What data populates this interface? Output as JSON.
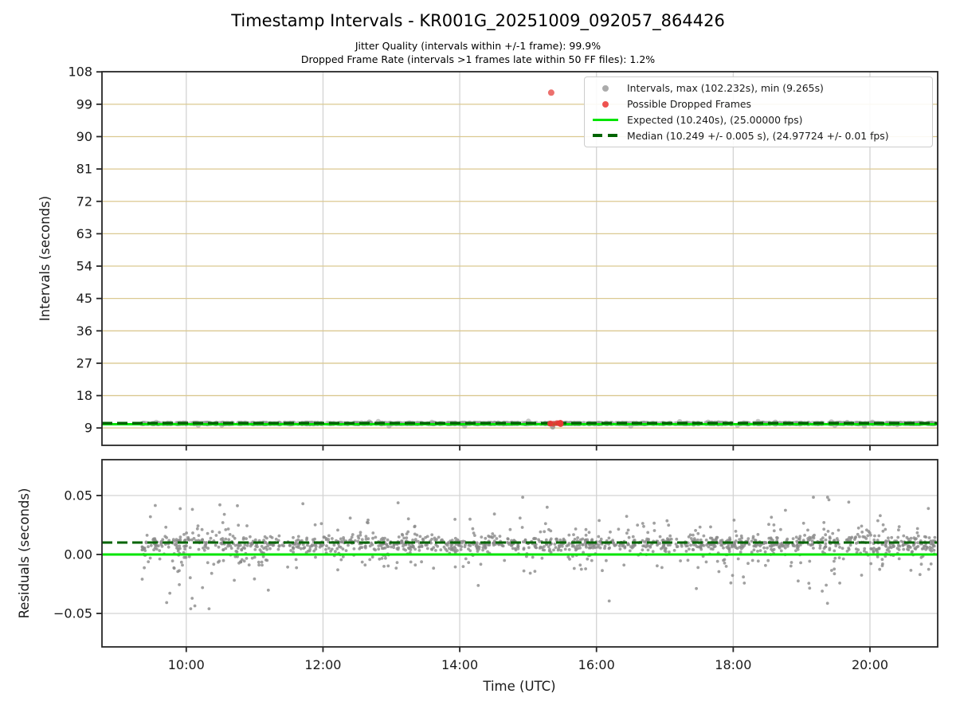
{
  "stats": {
    "jitter_quality_pct": 99.9,
    "dropped_frame_rate_pct": 1.2,
    "ff_files": 50
  },
  "chart_data": {
    "type": "scatter",
    "title": "Timestamp Intervals - KR001G_20251009_092057_864426",
    "subtitles": [
      "Jitter Quality (intervals within +/-1 frame): 99.9%",
      "Dropped Frame Rate (intervals >1 frames late within 50 FF files): 1.2%"
    ],
    "xlabel": "Time (UTC)",
    "x_ticks": [
      {
        "label": "10:00",
        "hour": 10
      },
      {
        "label": "12:00",
        "hour": 12
      },
      {
        "label": "14:00",
        "hour": 14
      },
      {
        "label": "16:00",
        "hour": 16
      },
      {
        "label": "18:00",
        "hour": 18
      },
      {
        "label": "20:00",
        "hour": 20
      }
    ],
    "xlim_hours": [
      8.77,
      20.99
    ],
    "panels": {
      "intervals": {
        "ylabel": "Intervals (seconds)",
        "y_ticks": [
          {
            "label": "9",
            "value": 9
          },
          {
            "label": "18",
            "value": 18
          },
          {
            "label": "27",
            "value": 27
          },
          {
            "label": "36",
            "value": 36
          },
          {
            "label": "45",
            "value": 45
          },
          {
            "label": "54",
            "value": 54
          },
          {
            "label": "63",
            "value": 63
          },
          {
            "label": "72",
            "value": 72
          },
          {
            "label": "81",
            "value": 81
          },
          {
            "label": "90",
            "value": 90
          },
          {
            "label": "99",
            "value": 99
          },
          {
            "label": "108",
            "value": 108
          }
        ],
        "ylim": [
          4.1,
          108
        ],
        "expected_seconds": 10.24,
        "expected_fps": "25.00000",
        "median_seconds": 10.249,
        "median_fps": "24.97724",
        "max_interval_s": 102.232,
        "min_interval_s": 9.265,
        "data_start_hour": 9.349,
        "data_end_hour": 20.95,
        "band_center_s": 10.245,
        "band_jitter_s": 0.05,
        "band_points": 720,
        "max_outlier": {
          "hour": 15.338,
          "value_s": 102.232
        },
        "min_point": {
          "hour": 15.36,
          "value_s": 9.265
        },
        "dropped_cluster": {
          "hour_start": 15.31,
          "hour_end": 15.5,
          "center_s": 10.33,
          "spread_s": 0.12,
          "count": 10
        }
      },
      "residuals": {
        "ylabel": "Residuals (seconds)",
        "y_ticks": [
          {
            "label": "0.05",
            "value": 0.05
          },
          {
            "label": "0.00",
            "value": 0.0
          },
          {
            "label": "−0.05",
            "value": -0.05
          }
        ],
        "ylim": [
          -0.078,
          0.08
        ],
        "zero_line_s": 0.0,
        "median_line_s": 0.0101,
        "n_points": 1500,
        "scatter_profile": {
          "core": {
            "frac": 0.62,
            "mean": 0.009,
            "sigma": 0.0032
          },
          "middle": {
            "frac": 0.28,
            "mean": 0.0075,
            "sigma": 0.0095
          },
          "wide": {
            "frac": 0.1,
            "mean": 0.004,
            "sigma": 0.019
          },
          "clip": [
            -0.046,
            0.0485
          ],
          "spread_clusters": [
            {
              "hour_start": 9.35,
              "hour_end": 10.75,
              "multiplier": 1.55
            },
            {
              "hour_start": 19.15,
              "hour_end": 20.2,
              "multiplier": 1.75
            }
          ]
        }
      }
    },
    "legend": {
      "items": [
        {
          "marker": "gray-dot",
          "label": "Intervals, max (102.232s), min (9.265s)"
        },
        {
          "marker": "red-dot",
          "label": "Possible Dropped Frames"
        },
        {
          "marker": "lime-line",
          "label": "Expected (10.240s), (25.00000 fps)"
        },
        {
          "marker": "green-dashed-line",
          "label": "Median (10.249 +/- 0.005 s), (24.97724 +/- 0.01 fps)"
        }
      ]
    },
    "colors": {
      "grid_tan": "#dbc991",
      "grid_gray": "#d3d3d3",
      "marker_gray": "#8f8f8f",
      "marker_red": "#e53935",
      "expected_line": "#00e400",
      "median_line": "#006400",
      "spine": "#262626",
      "tick_text": "#1a1a1a"
    }
  }
}
